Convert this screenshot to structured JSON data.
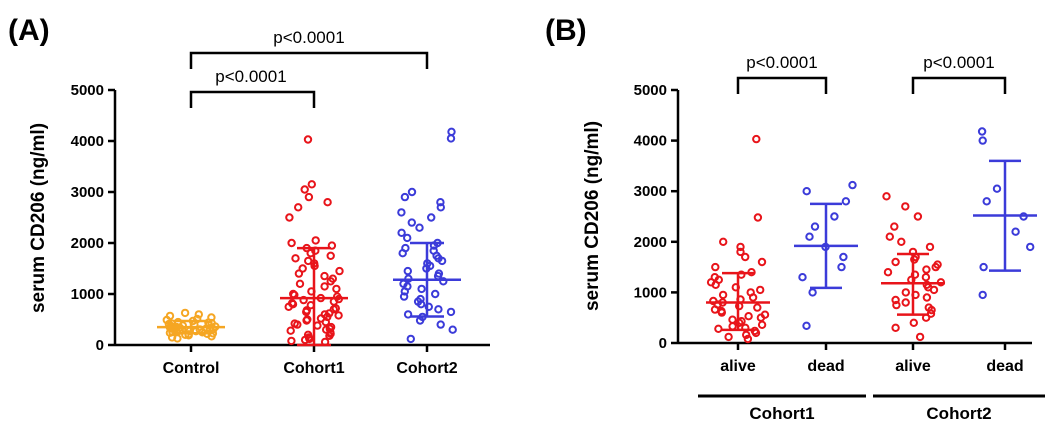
{
  "chart_data": [
    {
      "type": "scatter",
      "panel_label": "(A)",
      "ylabel": "serum CD206 (ng/ml)",
      "ylim": [
        0,
        5000
      ],
      "yticks": [
        "0",
        "1000",
        "2000",
        "3000",
        "4000",
        "5000"
      ],
      "categories": [
        "Control",
        "Cohort1",
        "Cohort2"
      ],
      "colors": [
        "#f5a623",
        "#e8141a",
        "#3b3bd9"
      ],
      "series": [
        {
          "category": "Control",
          "mean": 350,
          "sd_low": 230,
          "sd_high": 470,
          "values": [
            130,
            150,
            170,
            190,
            200,
            210,
            220,
            230,
            240,
            250,
            255,
            260,
            270,
            275,
            280,
            290,
            300,
            305,
            310,
            320,
            325,
            330,
            340,
            345,
            350,
            355,
            360,
            370,
            380,
            390,
            400,
            410,
            420,
            430,
            440,
            450,
            470,
            490,
            510,
            540,
            570,
            600,
            630
          ]
        },
        {
          "category": "Cohort1",
          "mean": 920,
          "sd_low": 0,
          "sd_high": 1900,
          "values": [
            60,
            80,
            100,
            120,
            150,
            180,
            200,
            220,
            250,
            280,
            300,
            320,
            350,
            380,
            400,
            420,
            450,
            480,
            500,
            520,
            550,
            580,
            600,
            620,
            650,
            680,
            700,
            720,
            750,
            780,
            800,
            820,
            850,
            880,
            900,
            920,
            950,
            980,
            1000,
            1050,
            1100,
            1150,
            1200,
            1250,
            1300,
            1350,
            1400,
            1450,
            1500,
            1550,
            1600,
            1650,
            1700,
            1750,
            1800,
            1850,
            1900,
            1950,
            2000,
            2050,
            2500,
            2700,
            2800,
            2900,
            3050,
            3150,
            4030
          ]
        },
        {
          "category": "Cohort2",
          "mean": 1280,
          "sd_low": 560,
          "sd_high": 2000,
          "values": [
            120,
            300,
            400,
            480,
            550,
            600,
            650,
            700,
            750,
            800,
            850,
            900,
            950,
            1000,
            1050,
            1100,
            1150,
            1200,
            1250,
            1300,
            1350,
            1400,
            1450,
            1500,
            1550,
            1600,
            1650,
            1700,
            1750,
            1800,
            1850,
            1900,
            1950,
            2000,
            2100,
            2200,
            2300,
            2400,
            2500,
            2600,
            2700,
            2800,
            2900,
            3000,
            4050,
            4180
          ]
        }
      ],
      "comparisons": [
        {
          "from": "Control",
          "to": "Cohort1",
          "label": "p<0.0001"
        },
        {
          "from": "Control",
          "to": "Cohort2",
          "label": "p<0.0001"
        }
      ]
    },
    {
      "type": "scatter",
      "panel_label": "(B)",
      "ylabel": "serum CD206 (ng/ml)",
      "ylim": [
        0,
        5000
      ],
      "yticks": [
        "0",
        "1000",
        "2000",
        "3000",
        "4000",
        "5000"
      ],
      "categories": [
        "alive",
        "dead",
        "alive",
        "dead"
      ],
      "groups": [
        {
          "label": "Cohort1",
          "categories": [
            0,
            1
          ]
        },
        {
          "label": "Cohort2",
          "categories": [
            2,
            3
          ]
        }
      ],
      "series": [
        {
          "category": "alive",
          "group": "Cohort1",
          "color": "#e8141a",
          "point_color": "#e8141a",
          "mean": 800,
          "sd_low": 260,
          "sd_high": 1380,
          "values": [
            80,
            120,
            160,
            200,
            240,
            280,
            300,
            330,
            360,
            400,
            430,
            460,
            500,
            530,
            560,
            600,
            630,
            660,
            700,
            730,
            760,
            800,
            830,
            860,
            900,
            950,
            1000,
            1050,
            1100,
            1150,
            1200,
            1250,
            1300,
            1350,
            1400,
            1500,
            1600,
            1700,
            1800,
            1900,
            2000,
            2480,
            4030
          ]
        },
        {
          "category": "dead",
          "group": "Cohort1",
          "color": "#3b3bd9",
          "point_color": "#3b3bd9",
          "mean": 1920,
          "sd_low": 1090,
          "sd_high": 2750,
          "values": [
            340,
            1000,
            1300,
            1500,
            1700,
            1900,
            2100,
            2300,
            2500,
            2800,
            3000,
            3120
          ]
        },
        {
          "category": "alive",
          "group": "Cohort2",
          "color": "#e8141a",
          "point_color": "#e8141a",
          "mean": 1180,
          "sd_low": 560,
          "sd_high": 1760,
          "values": [
            120,
            300,
            400,
            500,
            580,
            650,
            700,
            750,
            800,
            850,
            900,
            950,
            1000,
            1050,
            1100,
            1150,
            1200,
            1250,
            1300,
            1350,
            1400,
            1450,
            1500,
            1550,
            1600,
            1650,
            1700,
            1800,
            1900,
            2000,
            2100,
            2300,
            2500,
            2700,
            2900
          ]
        },
        {
          "category": "dead",
          "group": "Cohort2",
          "color": "#3b3bd9",
          "point_color": "#3b3bd9",
          "mean": 2520,
          "sd_low": 1430,
          "sd_high": 3600,
          "values": [
            950,
            1500,
            1900,
            2200,
            2500,
            2800,
            3050,
            4000,
            4180
          ]
        }
      ],
      "comparisons": [
        {
          "from": 0,
          "to": 1,
          "label": "p<0.0001"
        },
        {
          "from": 2,
          "to": 3,
          "label": "p<0.0001"
        }
      ]
    }
  ]
}
